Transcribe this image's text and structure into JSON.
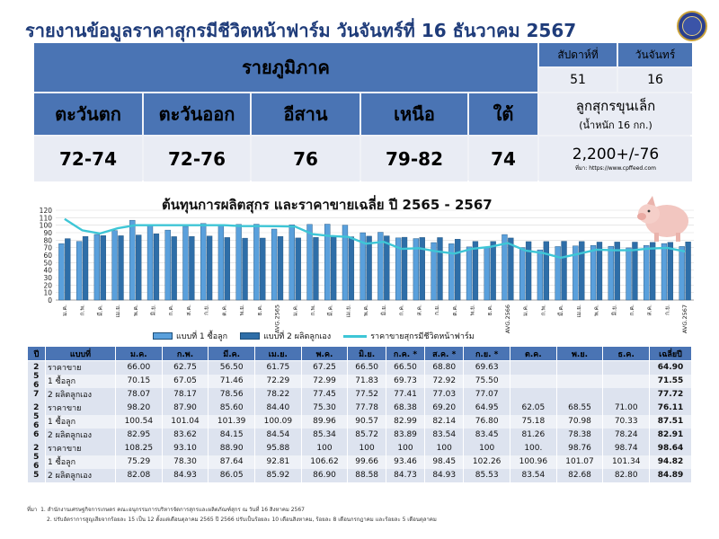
{
  "title": "รายงานข้อมูลราคาสุกรมีชีวิตหน้าฟาร์ม วันจันทร์ที่ 16 ธันวาคม 2567",
  "region_table": {
    "header": "รายภูมิภาค",
    "week_label": "สัปดาห์ที่",
    "day_label": "วันจันทร์",
    "week_value": "51",
    "day_value": "16",
    "regions": [
      {
        "name": "ตะวันตก",
        "price": "72-74"
      },
      {
        "name": "ตะวันออก",
        "price": "72-76"
      },
      {
        "name": "อีสาน",
        "price": "76"
      },
      {
        "name": "เหนือ",
        "price": "79-82"
      },
      {
        "name": "ใต้",
        "price": "74"
      }
    ],
    "piglet_label": "ลูกสุกรขุนเล็ก",
    "piglet_weight": "(น้ำหนัก 16 กก.)",
    "piglet_price": "2,200+/-76",
    "source": "ที่มา: https://www.cpffeed.com"
  },
  "chart_data": {
    "type": "bar",
    "title": "ต้นทุนการผลิตสุกร และราคาขายเฉลี่ย ปี 2565 - 2567",
    "ylim": [
      0,
      120
    ],
    "yticks": [
      0,
      10,
      20,
      30,
      40,
      50,
      60,
      70,
      80,
      90,
      100,
      110,
      120
    ],
    "categories": [
      "ม.ค.",
      "ก.พ.",
      "มี.ค.",
      "เม.ย.",
      "พ.ค.",
      "มิ.ย.",
      "ก.ค.",
      "ส.ค.",
      "ก.ย.",
      "ต.ค.",
      "พ.ย.",
      "ธ.ค.",
      "AVG.2565",
      "ม.ค.",
      "ก.พ.",
      "มี.ค.",
      "เม.ย.",
      "พ.ค.",
      "มิ.ย.",
      "ก.ค.",
      "ส.ค.",
      "ก.ย.",
      "ต.ค.",
      "พ.ย.",
      "ธ.ค.",
      "AVG.2566",
      "ม.ค.",
      "ก.พ.",
      "มี.ค.",
      "เม.ย.",
      "พ.ค.",
      "มิ.ย.",
      "ก.ค.",
      "ส.ค.",
      "ก.ย.",
      "AVG.2567"
    ],
    "series": [
      {
        "name": "แบบที่ 1 ซื้อลูก",
        "kind": "bar",
        "color": "#5aa0dc",
        "values": [
          75.29,
          78.3,
          87.64,
          92.81,
          106.62,
          99.66,
          93.46,
          98.45,
          102.26,
          100.96,
          101.07,
          101.34,
          94.82,
          100.54,
          101.04,
          101.39,
          100.09,
          89.96,
          90.57,
          82.99,
          82.14,
          76.8,
          75.18,
          70.98,
          70.33,
          87.51,
          70.15,
          67.05,
          71.46,
          72.29,
          72.99,
          71.83,
          69.73,
          72.92,
          75.5,
          71.55
        ]
      },
      {
        "name": "แบบที่ 2 ผลิตลูกเอง",
        "kind": "bar",
        "color": "#2e6ea8",
        "values": [
          82.08,
          84.93,
          86.05,
          85.92,
          86.9,
          88.58,
          84.73,
          84.93,
          85.53,
          83.54,
          82.68,
          82.8,
          84.89,
          82.95,
          83.62,
          84.15,
          84.54,
          85.34,
          85.72,
          83.89,
          83.54,
          83.45,
          81.26,
          78.38,
          78.24,
          82.91,
          78.07,
          78.17,
          78.56,
          78.22,
          77.45,
          77.52,
          77.41,
          77.03,
          77.07,
          77.72
        ]
      },
      {
        "name": "ราคาขายสุกรมีชีวิตหน้าฟาร์ม",
        "kind": "line",
        "color": "#3ec6d6",
        "values": [
          108.25,
          93.1,
          88.9,
          95.88,
          100,
          100,
          100,
          100,
          100,
          100,
          98.76,
          98.74,
          98.64,
          98.2,
          87.9,
          85.6,
          84.4,
          75.3,
          77.78,
          68.38,
          69.2,
          64.95,
          62.05,
          68.55,
          71.0,
          76.11,
          66.0,
          62.75,
          56.5,
          61.75,
          67.25,
          66.5,
          66.5,
          68.8,
          69.63,
          64.9
        ]
      }
    ]
  },
  "data_table": {
    "headers": [
      "ปี",
      "แบบที่",
      "ม.ค.",
      "ก.พ.",
      "มี.ค.",
      "เม.ย.",
      "พ.ค.",
      "มิ.ย.",
      "ก.ค. *",
      "ส.ค. *",
      "ก.ย. *",
      "ต.ค.",
      "พ.ย.",
      "ธ.ค.",
      "เฉลี่ยปี"
    ],
    "groups": [
      {
        "year": "2567",
        "rows": [
          {
            "label": "ราคาขาย",
            "values": [
              "66.00",
              "62.75",
              "56.50",
              "61.75",
              "67.25",
              "66.50",
              "66.50",
              "68.80",
              "69.63",
              "",
              "",
              "",
              "64.90"
            ]
          },
          {
            "label": "1 ซื้อลูก",
            "values": [
              "70.15",
              "67.05",
              "71.46",
              "72.29",
              "72.99",
              "71.83",
              "69.73",
              "72.92",
              "75.50",
              "",
              "",
              "",
              "71.55"
            ]
          },
          {
            "label": "2 ผลิตลูกเอง",
            "values": [
              "78.07",
              "78.17",
              "78.56",
              "78.22",
              "77.45",
              "77.52",
              "77.41",
              "77.03",
              "77.07",
              "",
              "",
              "",
              "77.72"
            ]
          }
        ]
      },
      {
        "year": "2566",
        "rows": [
          {
            "label": "ราคาขาย",
            "values": [
              "98.20",
              "87.90",
              "85.60",
              "84.40",
              "75.30",
              "77.78",
              "68.38",
              "69.20",
              "64.95",
              "62.05",
              "68.55",
              "71.00",
              "76.11"
            ]
          },
          {
            "label": "1 ซื้อลูก",
            "values": [
              "100.54",
              "101.04",
              "101.39",
              "100.09",
              "89.96",
              "90.57",
              "82.99",
              "82.14",
              "76.80",
              "75.18",
              "70.98",
              "70.33",
              "87.51"
            ]
          },
          {
            "label": "2 ผลิตลูกเอง",
            "values": [
              "82.95",
              "83.62",
              "84.15",
              "84.54",
              "85.34",
              "85.72",
              "83.89",
              "83.54",
              "83.45",
              "81.26",
              "78.38",
              "78.24",
              "82.91"
            ]
          }
        ]
      },
      {
        "year": "2565",
        "rows": [
          {
            "label": "ราคาขาย",
            "values": [
              "108.25",
              "93.10",
              "88.90",
              "95.88",
              "100",
              "100",
              "100",
              "100",
              "100",
              "100.",
              "98.76",
              "98.74",
              "98.64"
            ]
          },
          {
            "label": "1 ซื้อลูก",
            "values": [
              "75.29",
              "78.30",
              "87.64",
              "92.81",
              "106.62",
              "99.66",
              "93.46",
              "98.45",
              "102.26",
              "100.96",
              "101.07",
              "101.34",
              "94.82"
            ]
          },
          {
            "label": "2 ผลิตลูกเอง",
            "values": [
              "82.08",
              "84.93",
              "86.05",
              "85.92",
              "86.90",
              "88.58",
              "84.73",
              "84.93",
              "85.53",
              "83.54",
              "82.68",
              "82.80",
              "84.89"
            ]
          }
        ]
      }
    ]
  },
  "footnotes": {
    "label": "ที่มา",
    "line1": "1. สำนักงานเศรษฐกิจการเกษตร คณะอนุกรรมการบริหารจัดการสุกรและผลิตภัณฑ์สุกร ณ วันที่ 16 สิงหาคม 2567",
    "line2": "2. ปรับอัตราการสูญเสียจากร้อยละ 15 เป็น 12 ตั้งแต่เดือนตุลาคม 2565 ปี 2566 ปรับเป็นร้อยละ 10 เดือนสิงหาคม, ร้อยละ 8 เดือนกรกฎาคม และร้อยละ 5 เดือนตุลาคม"
  }
}
